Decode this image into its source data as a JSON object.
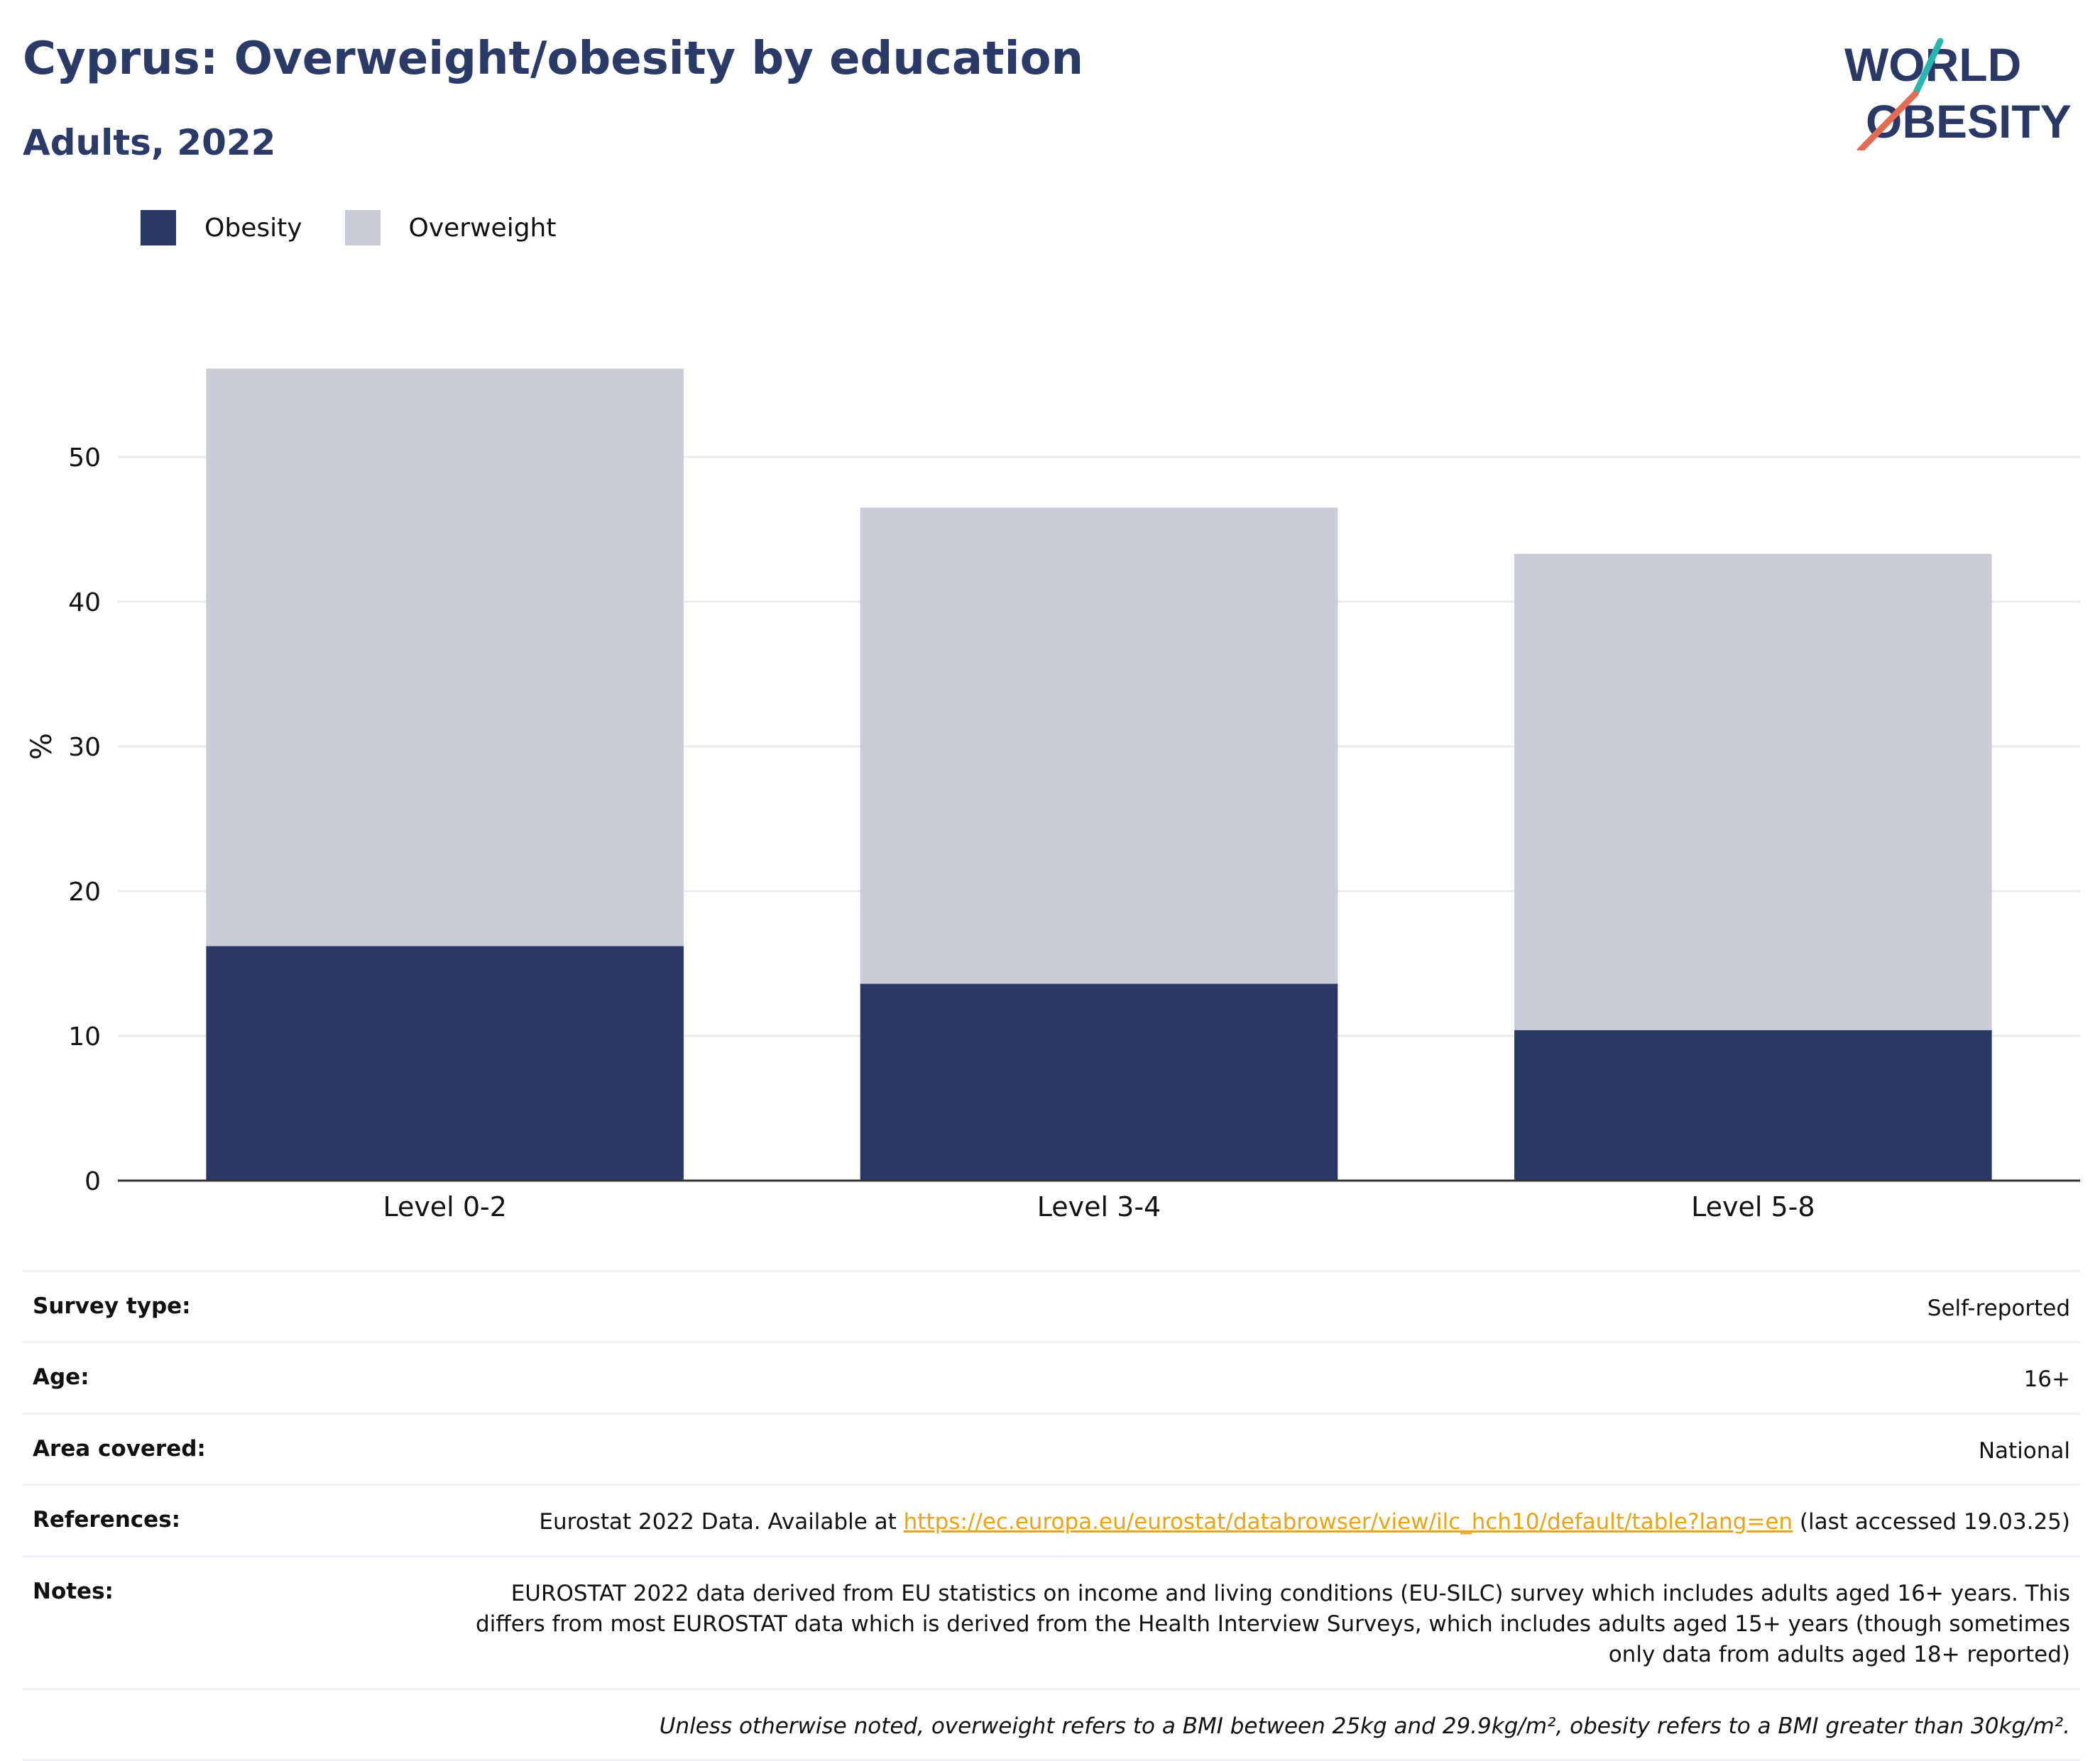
{
  "header": {
    "title": "Cyprus: Overweight/obesity by education",
    "subtitle": "Adults, 2022",
    "logo_line1": "WORLD",
    "logo_line2": "OBESITY"
  },
  "legend": [
    {
      "label": "Obesity",
      "color": "#2b3765"
    },
    {
      "label": "Overweight",
      "color": "#c9ccd7"
    }
  ],
  "chart_data": {
    "type": "bar",
    "stacked": true,
    "categories": [
      "Level 0-2",
      "Level 3-4",
      "Level 5-8"
    ],
    "series": [
      {
        "name": "Obesity",
        "values": [
          16.2,
          13.6,
          10.4
        ],
        "color": "#2b3765"
      },
      {
        "name": "Overweight",
        "values": [
          39.9,
          32.9,
          32.9
        ],
        "color": "#c9ccd7"
      }
    ],
    "ylabel": "%",
    "xlabel": "",
    "ylim": [
      0,
      60
    ],
    "yticks": [
      0,
      10,
      20,
      30,
      40,
      50
    ],
    "grid": true
  },
  "info": {
    "survey_type": {
      "label": "Survey type:",
      "value": "Self-reported"
    },
    "age": {
      "label": "Age:",
      "value": "16+"
    },
    "area": {
      "label": "Area covered:",
      "value": "National"
    },
    "references": {
      "label": "References:",
      "prefix": "Eurostat 2022 Data. Available at ",
      "link": "https://ec.europa.eu/eurostat/databrowser/view/ilc_hch10/default/table?lang=en",
      "suffix": " (last accessed 19.03.25)"
    },
    "notes": {
      "label": "Notes:",
      "value": "EUROSTAT 2022 data derived from EU statistics on income and living conditions (EU-SILC) survey which includes adults aged 16+ years. This differs from most EUROSTAT data which is derived from the Health Interview Surveys, which includes adults aged 15+ years (though sometimes only data from adults aged 18+ reported)"
    },
    "footnote": "Unless otherwise noted, overweight refers to a BMI between 25kg and 29.9kg/m², obesity refers to a BMI greater than 30kg/m²."
  }
}
